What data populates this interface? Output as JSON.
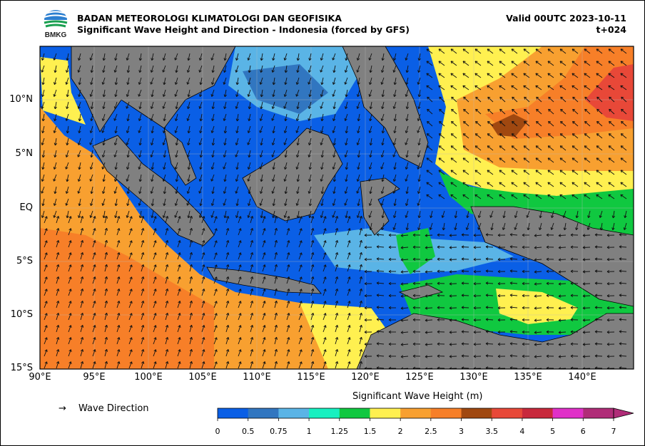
{
  "header": {
    "agency": "BADAN METEOROLOGI KLIMATOLOGI DAN GEOFISIKA",
    "product": "Significant Wave Height and Direction - Indonesia (forced by GFS)",
    "valid": "Valid 00UTC 2023-10-11",
    "lead": "t+024",
    "logo_text": "BMKG"
  },
  "map": {
    "lat_labels": [
      "10°N",
      "5°N",
      "EQ",
      "5°S",
      "10°S",
      "15°S"
    ],
    "lon_labels": [
      "90°E",
      "95°E",
      "100°E",
      "105°E",
      "110°E",
      "115°E",
      "120°E",
      "125°E",
      "130°E",
      "135°E",
      "140°E"
    ],
    "land_color": "#808080",
    "ocean_base_color": "#0a5fe6"
  },
  "legend": {
    "arrow_symbol": "→",
    "arrow_label": "Wave Direction"
  },
  "colorbar": {
    "title": "Significant Wave Height (m)",
    "ticks": [
      "0",
      "0.5",
      "0.75",
      "1",
      "1.25",
      "1.5",
      "2",
      "2.5",
      "3",
      "3.5",
      "4",
      "5",
      "6",
      "7"
    ],
    "colors": [
      "#0a5fe6",
      "#3176c0",
      "#5ab4e6",
      "#18f0c0",
      "#10c840",
      "#fff050",
      "#f8a030",
      "#f77f28",
      "#a04810",
      "#e84838",
      "#c8283c",
      "#e030c8",
      "#b02c78"
    ]
  }
}
